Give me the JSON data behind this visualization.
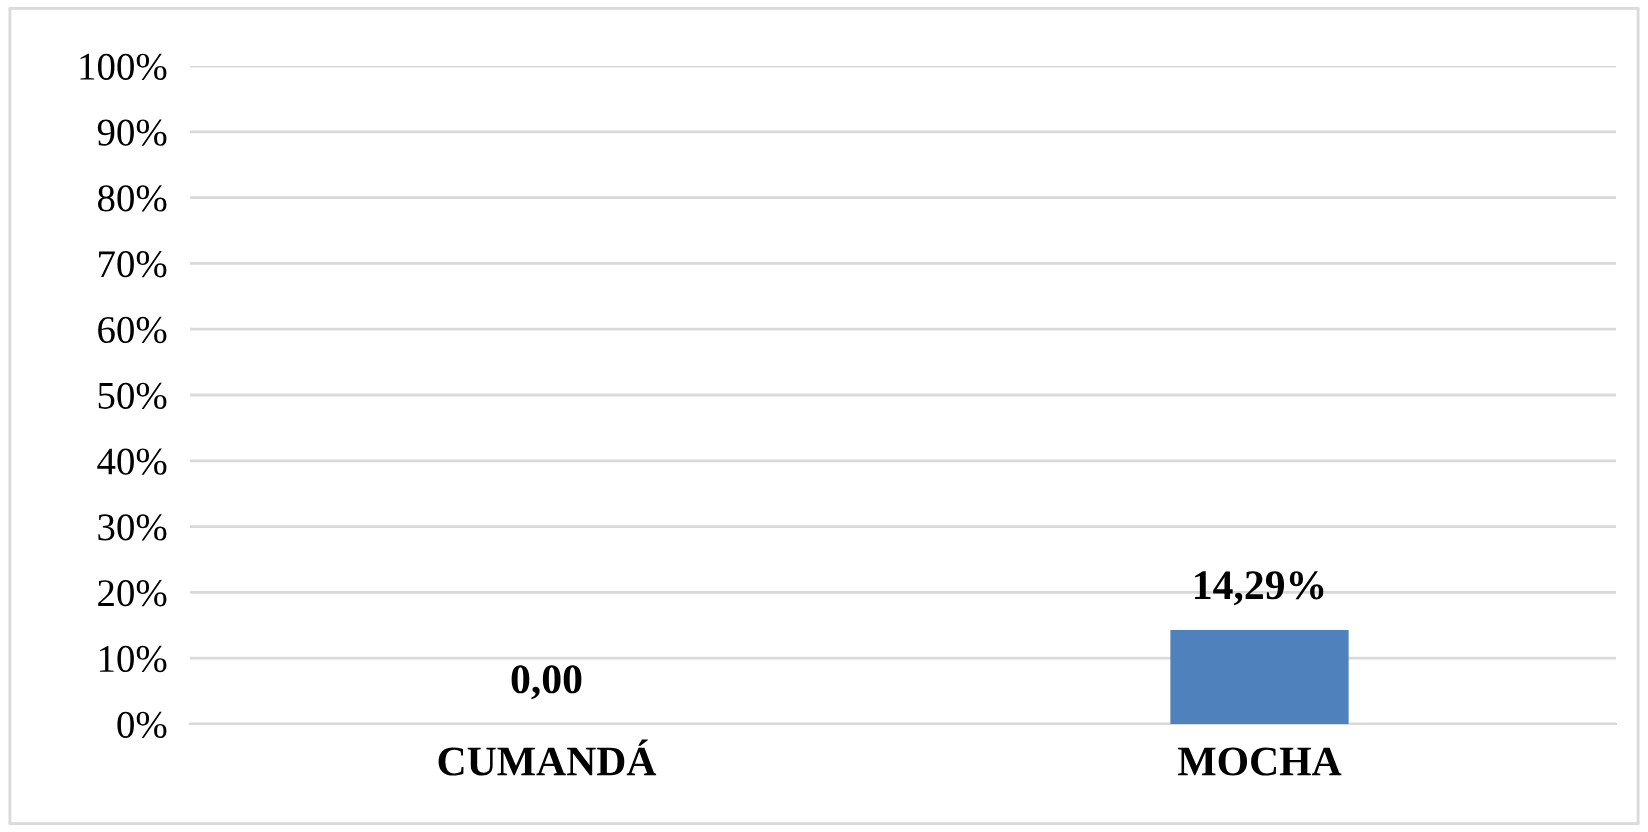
{
  "chart_data": {
    "type": "bar",
    "categories": [
      "CUMANDÁ",
      "MOCHA"
    ],
    "values": [
      0,
      14.29
    ],
    "value_labels": [
      "0,00",
      "14,29%"
    ],
    "color": "#4f81bd",
    "ylim": [
      0,
      100
    ],
    "yticks": [
      {
        "value": 0,
        "label": "0%"
      },
      {
        "value": 10,
        "label": "10%"
      },
      {
        "value": 20,
        "label": "20%"
      },
      {
        "value": 30,
        "label": "30%"
      },
      {
        "value": 40,
        "label": "40%"
      },
      {
        "value": 50,
        "label": "50%"
      },
      {
        "value": 60,
        "label": "60%"
      },
      {
        "value": 70,
        "label": "70%"
      },
      {
        "value": 80,
        "label": "80%"
      },
      {
        "value": 90,
        "label": "90%"
      },
      {
        "value": 100,
        "label": "100%"
      }
    ],
    "grid": "y",
    "legend": false
  }
}
